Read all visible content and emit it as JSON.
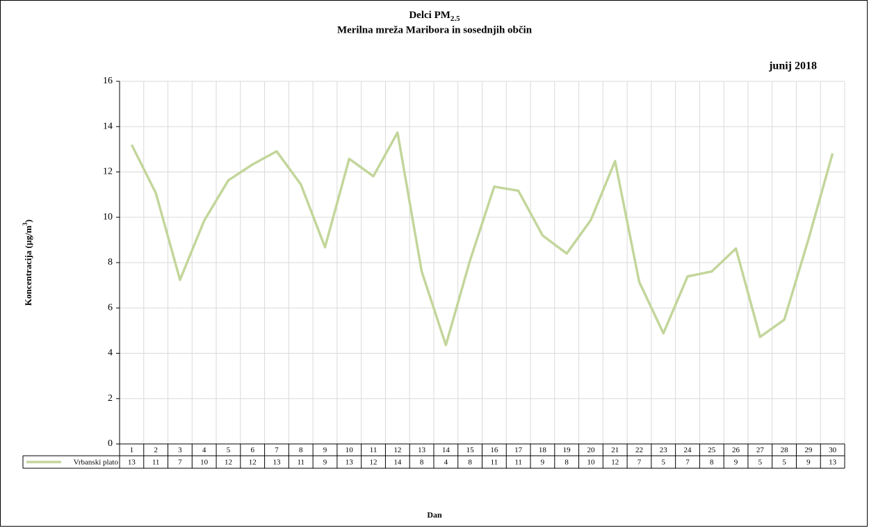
{
  "chart_data": {
    "type": "line",
    "title": {
      "text": "Delci PM",
      "subscript": "2.5"
    },
    "subtitle": "Merilna mreža Maribora in sosednjih občin",
    "annotation": "junij 2018",
    "y_label": {
      "text": "Koncentracija  (µg/m",
      "superscript": "3",
      "suffix": ")"
    },
    "x_label": "Dan",
    "categories": [
      1,
      2,
      3,
      4,
      5,
      6,
      7,
      8,
      9,
      10,
      11,
      12,
      13,
      14,
      15,
      16,
      17,
      18,
      19,
      20,
      21,
      22,
      23,
      24,
      25,
      26,
      27,
      28,
      29,
      30
    ],
    "series": [
      {
        "name": "Vrbanski plato",
        "color": "#c3d69b",
        "values": [
          13.2,
          11.07,
          7.24,
          9.85,
          11.63,
          12.33,
          12.91,
          11.45,
          8.68,
          12.58,
          11.81,
          13.74,
          7.61,
          4.36,
          8.1,
          11.35,
          11.17,
          9.2,
          8.4,
          9.88,
          12.48,
          7.15,
          4.88,
          7.39,
          7.61,
          8.62,
          4.72,
          5.48,
          9.02,
          12.82
        ],
        "value_labels": [
          "13",
          "11",
          "7",
          "10",
          "12",
          "12",
          "13",
          "11",
          "9",
          "13",
          "12",
          "14",
          "8",
          "4",
          "8",
          "11",
          "11",
          "9",
          "8",
          "10",
          "12",
          "7",
          "5",
          "7",
          "8",
          "9",
          "5",
          "5",
          "9",
          "13"
        ]
      }
    ],
    "ylim": [
      0,
      16
    ],
    "yticks": [
      0,
      2,
      4,
      6,
      8,
      10,
      12,
      14,
      16
    ],
    "grid": true
  }
}
